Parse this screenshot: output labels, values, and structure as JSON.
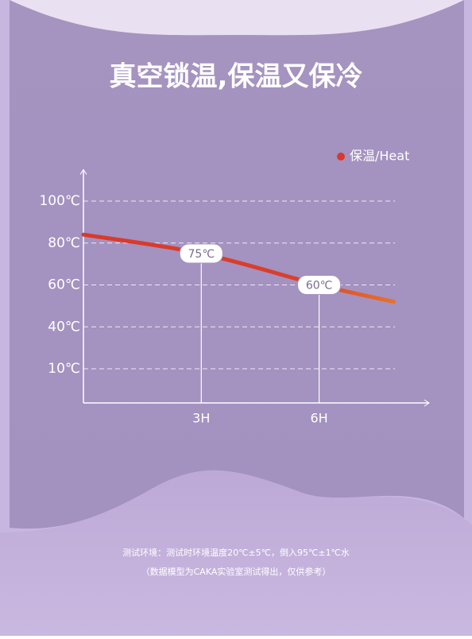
{
  "chart_data": {
    "type": "line",
    "title": "真空锁温,保温又保冷",
    "x": [
      0,
      3,
      6,
      7.9
    ],
    "series": [
      {
        "name": "保温/Heat",
        "color": "#d9392b",
        "values": [
          84,
          75,
          60,
          52
        ],
        "value_labels": [
          null,
          "75℃",
          "60℃",
          null
        ]
      }
    ],
    "xlim": [
      0,
      8.8
    ],
    "xticks": [
      {
        "value": 3,
        "label": "3H"
      },
      {
        "value": 6,
        "label": "6H"
      }
    ],
    "ylim": [
      0,
      115
    ],
    "yticks": [
      {
        "value": 100,
        "label": "100℃"
      },
      {
        "value": 80,
        "label": "80℃"
      },
      {
        "value": 60,
        "label": "60℃"
      },
      {
        "value": 40,
        "label": "40℃"
      },
      {
        "value": 10,
        "label": "10℃"
      }
    ],
    "grid": true,
    "legend": "top-right",
    "notes": [
      "测试环境：测试时环境温度20℃±5℃，倒入95℃±1℃水",
      "（数据模型为CAKA实验室测试得出，仅供参考）"
    ]
  }
}
